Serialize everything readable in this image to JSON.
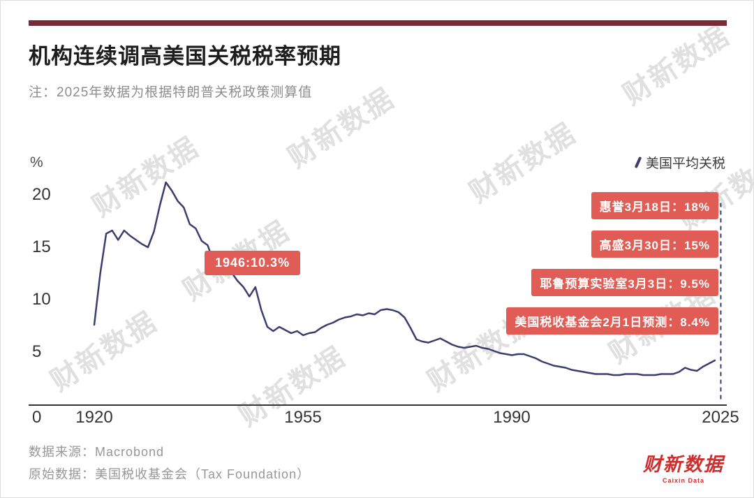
{
  "page": {
    "title": "机构连续调高美国关税税率预期",
    "subtitle": "注：2025年数据为根据特朗普关税政策测算值",
    "watermark": "财新数据",
    "footer": {
      "line1": "数据来源：Macrobond",
      "line2": "原始数据：美国税收基金会（Tax Foundation）"
    },
    "logo": {
      "name": "财新数据",
      "caption": "Caixin Data"
    }
  },
  "colors": {
    "topbar": "#772b35",
    "line": "#3c3c6e",
    "callout_bg": "#e25c56",
    "logo_red": "#cf2e2e"
  },
  "chart_data": {
    "type": "line",
    "title": "机构连续调高美国关税税率预期",
    "ylabel": "%",
    "legend": [
      "美国平均关税"
    ],
    "legend_position": "top-right",
    "grid": false,
    "x_ticks": [
      "1920",
      "1955",
      "1990",
      "2025"
    ],
    "y_ticks": [
      "0",
      "5",
      "10",
      "15",
      "20"
    ],
    "xlim": [
      1909,
      2026
    ],
    "ylim": [
      0,
      22
    ],
    "series": [
      {
        "name": "美国平均关税",
        "color": "#3c3c6e",
        "points": [
          [
            1920,
            7.6
          ],
          [
            1921,
            12.5
          ],
          [
            1922,
            16.3
          ],
          [
            1923,
            16.6
          ],
          [
            1924,
            15.7
          ],
          [
            1925,
            16.6
          ],
          [
            1926,
            16.1
          ],
          [
            1927,
            15.7
          ],
          [
            1928,
            15.3
          ],
          [
            1929,
            15.0
          ],
          [
            1930,
            16.5
          ],
          [
            1931,
            19.0
          ],
          [
            1932,
            21.2
          ],
          [
            1933,
            20.4
          ],
          [
            1934,
            19.4
          ],
          [
            1935,
            18.8
          ],
          [
            1936,
            17.2
          ],
          [
            1937,
            16.8
          ],
          [
            1938,
            15.6
          ],
          [
            1939,
            15.2
          ],
          [
            1940,
            13.6
          ],
          [
            1941,
            13.9
          ],
          [
            1942,
            13.1
          ],
          [
            1943,
            12.6
          ],
          [
            1944,
            11.8
          ],
          [
            1945,
            11.2
          ],
          [
            1946,
            10.3
          ],
          [
            1947,
            11.2
          ],
          [
            1948,
            9.0
          ],
          [
            1949,
            7.4
          ],
          [
            1950,
            7.0
          ],
          [
            1951,
            7.4
          ],
          [
            1952,
            7.1
          ],
          [
            1953,
            6.8
          ],
          [
            1954,
            7.0
          ],
          [
            1955,
            6.6
          ],
          [
            1956,
            6.8
          ],
          [
            1957,
            6.9
          ],
          [
            1958,
            7.3
          ],
          [
            1959,
            7.6
          ],
          [
            1960,
            7.8
          ],
          [
            1961,
            8.1
          ],
          [
            1962,
            8.3
          ],
          [
            1963,
            8.4
          ],
          [
            1964,
            8.6
          ],
          [
            1965,
            8.5
          ],
          [
            1966,
            8.7
          ],
          [
            1967,
            8.6
          ],
          [
            1968,
            9.0
          ],
          [
            1969,
            9.1
          ],
          [
            1970,
            9.0
          ],
          [
            1971,
            8.8
          ],
          [
            1972,
            8.3
          ],
          [
            1973,
            7.3
          ],
          [
            1974,
            6.2
          ],
          [
            1975,
            6.0
          ],
          [
            1976,
            5.9
          ],
          [
            1977,
            6.1
          ],
          [
            1978,
            6.3
          ],
          [
            1979,
            6.0
          ],
          [
            1980,
            5.7
          ],
          [
            1981,
            5.5
          ],
          [
            1982,
            5.4
          ],
          [
            1983,
            5.5
          ],
          [
            1984,
            5.6
          ],
          [
            1985,
            5.4
          ],
          [
            1986,
            5.3
          ],
          [
            1987,
            5.1
          ],
          [
            1988,
            4.9
          ],
          [
            1989,
            4.8
          ],
          [
            1990,
            4.7
          ],
          [
            1991,
            4.8
          ],
          [
            1992,
            4.8
          ],
          [
            1993,
            4.6
          ],
          [
            1994,
            4.4
          ],
          [
            1995,
            4.1
          ],
          [
            1996,
            3.9
          ],
          [
            1997,
            3.7
          ],
          [
            1998,
            3.6
          ],
          [
            1999,
            3.5
          ],
          [
            2000,
            3.3
          ],
          [
            2001,
            3.2
          ],
          [
            2002,
            3.1
          ],
          [
            2003,
            3.0
          ],
          [
            2004,
            2.9
          ],
          [
            2005,
            2.9
          ],
          [
            2006,
            2.9
          ],
          [
            2007,
            2.8
          ],
          [
            2008,
            2.8
          ],
          [
            2009,
            2.9
          ],
          [
            2010,
            2.9
          ],
          [
            2011,
            2.9
          ],
          [
            2012,
            2.8
          ],
          [
            2013,
            2.8
          ],
          [
            2014,
            2.8
          ],
          [
            2015,
            2.9
          ],
          [
            2016,
            2.9
          ],
          [
            2017,
            2.9
          ],
          [
            2018,
            3.1
          ],
          [
            2019,
            3.5
          ],
          [
            2020,
            3.3
          ],
          [
            2021,
            3.2
          ],
          [
            2022,
            3.6
          ],
          [
            2023,
            3.9
          ],
          [
            2024,
            4.2
          ]
        ]
      }
    ],
    "forecast_marker": {
      "x": 2025,
      "y_from": 0.5,
      "y_to": 19.5,
      "style": "dashed"
    },
    "annotation": {
      "label": "1946:10.3%",
      "x": 1946,
      "y": 10.3
    },
    "callouts": [
      {
        "label": "惠誉3月18日：18%",
        "value_pct": 18
      },
      {
        "label": "高盛3月30日：15%",
        "value_pct": 15
      },
      {
        "label": "耶鲁预算实验室3月3日：9.5%",
        "value_pct": 9.5
      },
      {
        "label": "美国税收基金会2月1日预测：8.4%",
        "value_pct": 8.4
      }
    ]
  }
}
